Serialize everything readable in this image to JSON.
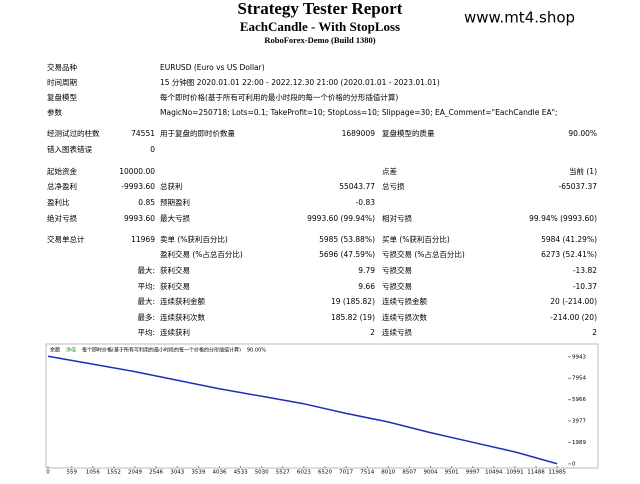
{
  "header": {
    "title": "Strategy Tester Report",
    "subtitle": "EachCandle - With StopLoss",
    "server": "RoboForex-Demo (Build 1380)",
    "watermark": "www.mt4.shop"
  },
  "info": [
    [
      "交易品种",
      "EURUSD (Euro vs US Dollar)"
    ],
    [
      "时间周期",
      "15 分钟图 2020.01.01 22:00 - 2022.12.30 21:00 (2020.01.01 - 2023.01.01)"
    ],
    [
      "复盘模型",
      "每个即时价格(基于所有可利用的最小时段的每一个价格的分形插值计算)"
    ],
    [
      "参数",
      "MagicNo=250718; Lots=0.1; TakeProfit=10; StopLoss=10; Slippage=30; EA_Comment=\"EachCandle EA\";"
    ]
  ],
  "stats": [
    [
      "经测试过的柱数",
      "74551",
      "用于复盘的即时价数量",
      "1689009",
      "复盘模型的质量",
      "90.00%"
    ],
    [
      "错入图表错误",
      "0",
      null,
      null,
      null,
      null
    ],
    [
      "起始资金",
      "10000.00",
      null,
      null,
      "点差",
      "当前 (1)"
    ],
    [
      "总净盈利",
      "-9993.60",
      "总获利",
      "55043.77",
      "总亏损",
      "-65037.37"
    ],
    [
      "盈利比",
      "0.85",
      "预期盈利",
      "-0.83",
      null,
      null
    ],
    [
      "绝对亏损",
      "9993.60",
      "最大亏损",
      "9993.60 (99.94%)",
      "相对亏损",
      "99.94% (9993.60)"
    ],
    [
      "交易单总计",
      "11969",
      "卖单 (%获利百分比)",
      "5985 (53.88%)",
      "买单 (%获利百分比)",
      "5984 (41.29%)"
    ],
    [
      null,
      null,
      "盈利交易 (%占总百分比)",
      "5696 (47.59%)",
      "亏损交易 (%占总百分比)",
      "6273 (52.41%)"
    ],
    [
      null,
      "最大:",
      "获利交易",
      "9.79",
      "亏损交易",
      "-13.82"
    ],
    [
      null,
      "平均:",
      "获利交易",
      "9.66",
      "亏损交易",
      "-10.37"
    ],
    [
      null,
      "最大:",
      "连续获利金额",
      "19 (185.82)",
      "连续亏损金额",
      "20 (-214.00)"
    ],
    [
      null,
      "最多:",
      "连续获利次数",
      "185.82 (19)",
      "连续亏损次数",
      "-214.00 (20)"
    ],
    [
      null,
      "平均:",
      "连续获利",
      "2",
      "连续亏损",
      "2"
    ]
  ],
  "chart_data": {
    "type": "line",
    "legend": [
      "余额",
      "净值",
      "每个即时价格(基于所有可利用的最小时段的每一个价格的分形插值计算)",
      "90.00%"
    ],
    "x": [
      0,
      1000,
      2000,
      3000,
      4000,
      5000,
      6000,
      7000,
      8000,
      9000,
      10000,
      11000,
      11985
    ],
    "series": [
      {
        "name": "余额",
        "color": "#1f2fb5",
        "values": [
          10000,
          9300,
          8600,
          7800,
          7000,
          6300,
          5600,
          4700,
          3900,
          2900,
          2000,
          1100,
          6.4
        ]
      }
    ],
    "xlim": [
      0,
      12240
    ],
    "ylim": [
      -200,
      10950
    ],
    "xticks": [
      0,
      559,
      1056,
      1552,
      2049,
      2546,
      3043,
      3539,
      4036,
      4533,
      5030,
      5527,
      6023,
      6520,
      7017,
      7514,
      8010,
      8507,
      9004,
      9501,
      9997,
      10494,
      10991,
      11488,
      11985
    ],
    "yticks": [
      0,
      1989,
      3977,
      5966,
      7954,
      9943
    ]
  }
}
